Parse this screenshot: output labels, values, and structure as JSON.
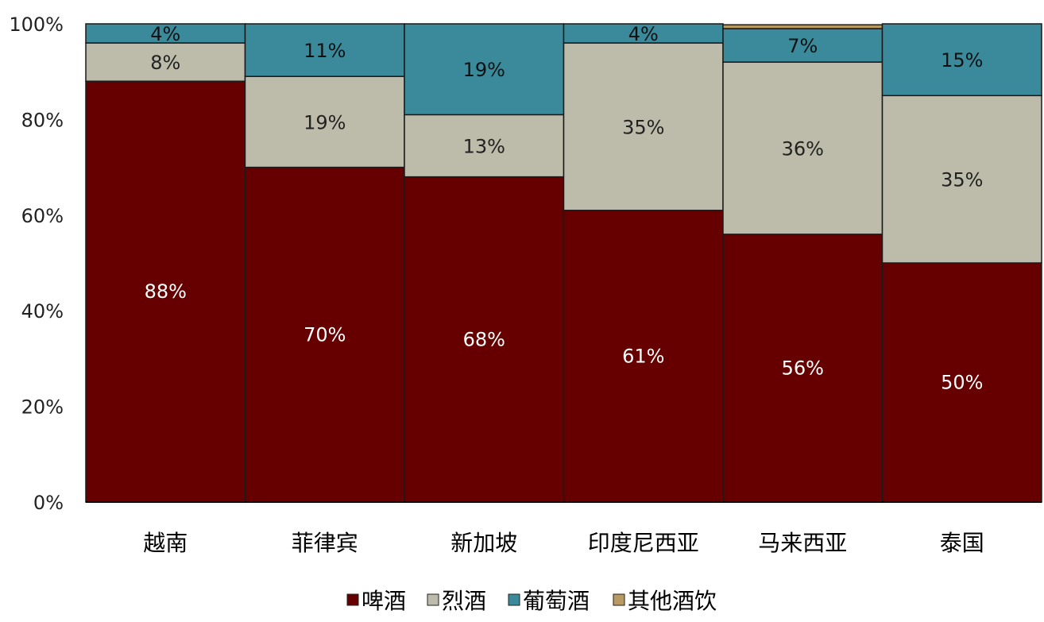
{
  "chart_data": {
    "type": "bar",
    "stacked": true,
    "percent": true,
    "categories": [
      "越南",
      "菲律宾",
      "新加坡",
      "印度尼西亚",
      "马来西亚",
      "泰国"
    ],
    "series": [
      {
        "name": "啤酒",
        "color": "#660000",
        "values": [
          88,
          70,
          68,
          61,
          56,
          50
        ],
        "labels": [
          "88%",
          "70%",
          "68%",
          "61%",
          "56%",
          "50%"
        ]
      },
      {
        "name": "烈酒",
        "color": "#BDBBA9",
        "values": [
          8,
          19,
          13,
          35,
          36,
          35
        ],
        "labels": [
          "8%",
          "19%",
          "13%",
          "35%",
          "36%",
          "35%"
        ]
      },
      {
        "name": "葡萄酒",
        "color": "#3A8A9C",
        "values": [
          4,
          11,
          19,
          4,
          7,
          15
        ],
        "labels": [
          "4%",
          "11%",
          "19%",
          "4%",
          "7%",
          "15%"
        ]
      },
      {
        "name": "其他酒饮",
        "color": "#B99A62",
        "values": [
          0,
          0.5,
          0.5,
          0,
          0.8,
          0.3
        ],
        "labels": [
          "",
          "",
          "",
          "",
          "",
          ""
        ]
      }
    ],
    "y_ticks": [
      "0%",
      "20%",
      "40%",
      "60%",
      "80%",
      "100%"
    ],
    "ylim": [
      0,
      100
    ],
    "grid": false,
    "legend_position": "bottom"
  }
}
